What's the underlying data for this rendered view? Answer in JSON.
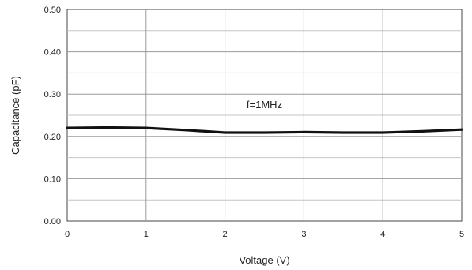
{
  "chart_data": {
    "type": "line",
    "xlabel": "Voltage (V)",
    "ylabel": "Capacitance (pF)",
    "xlim": [
      0,
      5
    ],
    "ylim": [
      0,
      0.5
    ],
    "x_ticks": [
      "0",
      "1",
      "2",
      "3",
      "4",
      "5"
    ],
    "y_ticks": [
      "0.00",
      "0.10",
      "0.20",
      "0.30",
      "0.40",
      "0.50"
    ],
    "grid": true,
    "annotation": "f=1MHz",
    "series": [
      {
        "x": [
          0,
          0.5,
          1,
          1.5,
          2,
          2.5,
          3,
          3.5,
          4,
          4.5,
          5
        ],
        "y": [
          0.22,
          0.221,
          0.22,
          0.215,
          0.209,
          0.209,
          0.21,
          0.209,
          0.209,
          0.212,
          0.216
        ]
      }
    ],
    "line_color": "#111111"
  }
}
